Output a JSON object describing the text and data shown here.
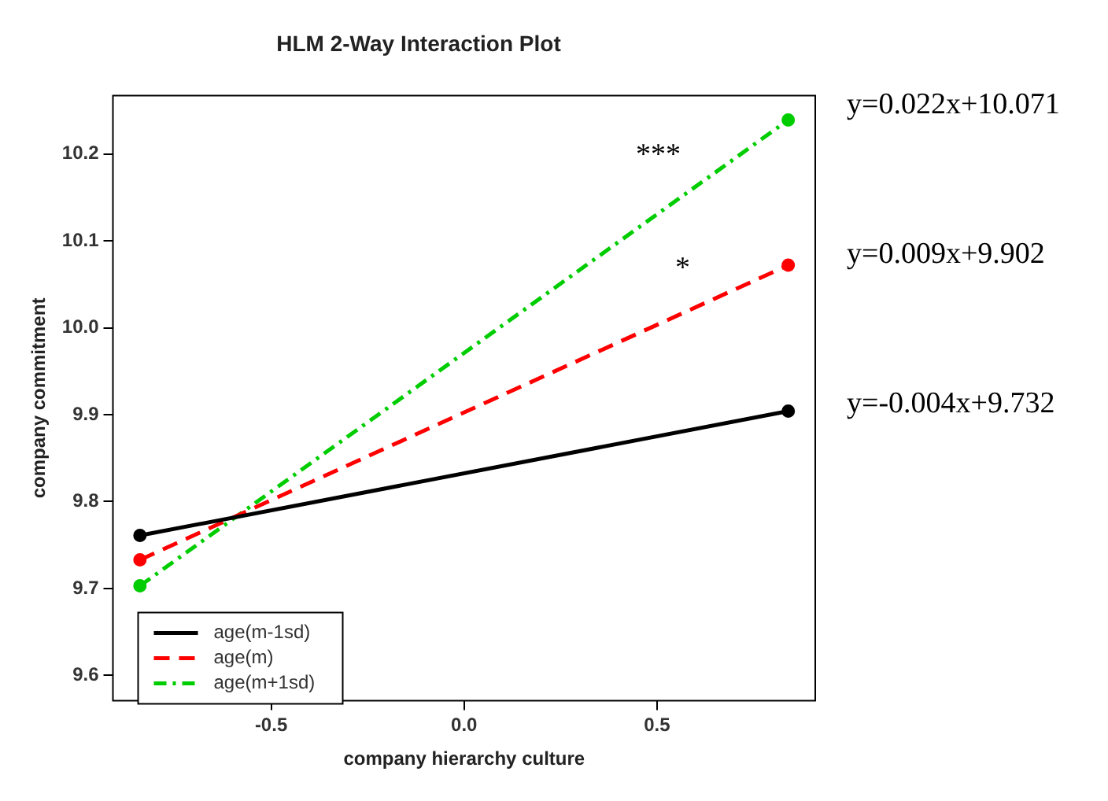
{
  "chart_data": {
    "type": "line",
    "title": "HLM 2-Way Interaction Plot",
    "xlabel": "company hierarchy culture",
    "ylabel": "company commitment",
    "x": [
      -0.84,
      0.84
    ],
    "xlim": [
      -0.91,
      0.91
    ],
    "xticks": [
      -0.5,
      {
        "value": 0,
        "label": "0.0"
      },
      0.5
    ],
    "ylim": [
      9.571,
      10.267
    ],
    "yticks": [
      9.6,
      9.7,
      9.8,
      9.9,
      {
        "value": 10,
        "label": "10.0"
      },
      10.1,
      10.2
    ],
    "series": [
      {
        "name": "age(m-1sd)",
        "color": "#000000",
        "values": [
          9.761,
          9.904
        ],
        "line_style": "solid"
      },
      {
        "name": "age(m)",
        "color": "#ff0000",
        "values": [
          9.733,
          10.072
        ],
        "line_style": "dashed"
      },
      {
        "name": "age(m+1sd)",
        "color": "#00cd00",
        "values": [
          9.703,
          10.239
        ],
        "line_style": "dashdot"
      }
    ],
    "marker": "circle",
    "grid": false,
    "legend": "bottom left",
    "annotations": [
      "***",
      "*",
      "y=0.022x+10.071",
      "y=0.009x+9.902",
      "y=-0.004x+9.732"
    ]
  }
}
